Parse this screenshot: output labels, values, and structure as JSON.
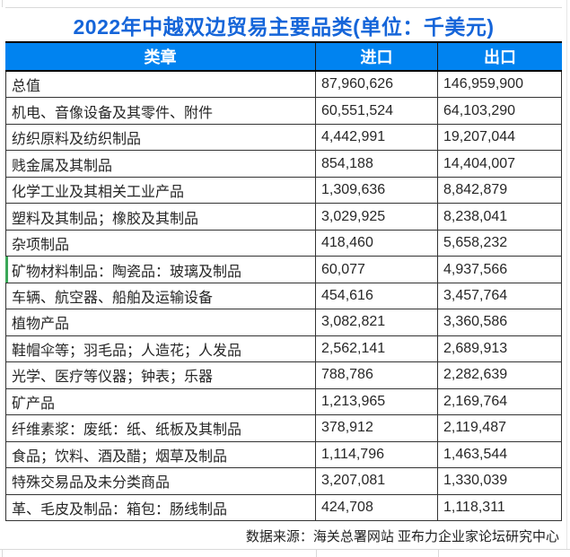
{
  "title": {
    "text": "2022年中越双边贸易主要品类(单位：千美元)"
  },
  "table": {
    "header": {
      "category": "类章",
      "import": "进口",
      "export": "出口"
    },
    "rows": [
      {
        "label": "总值",
        "import": "87,960,626",
        "export": "146,959,900",
        "accent_left": false
      },
      {
        "label": "机电、音像设备及其零件、附件",
        "import": "60,551,524",
        "export": "64,103,290",
        "accent_left": false
      },
      {
        "label": "纺织原料及纺织制品",
        "import": "4,442,991",
        "export": "19,207,044",
        "accent_left": false
      },
      {
        "label": "贱金属及其制品",
        "import": "854,188",
        "export": "14,404,007",
        "accent_left": false
      },
      {
        "label": "化学工业及其相关工业产品",
        "import": "1,309,636",
        "export": "8,842,879",
        "accent_left": false
      },
      {
        "label": "塑料及其制品；橡胶及其制品",
        "import": "3,029,925",
        "export": "8,238,041",
        "accent_left": false
      },
      {
        "label": "杂项制品",
        "import": "418,460",
        "export": "5,658,232",
        "accent_left": false
      },
      {
        "label": "矿物材料制品：陶瓷品：玻璃及制品",
        "import": "60,077",
        "export": "4,937,566",
        "accent_left": true
      },
      {
        "label": "车辆、航空器、船舶及运输设备",
        "import": "454,616",
        "export": "3,457,764",
        "accent_left": false
      },
      {
        "label": "植物产品",
        "import": "3,082,821",
        "export": "3,360,586",
        "accent_left": false
      },
      {
        "label": "鞋帽伞等；羽毛品；人造花；人发品",
        "import": "2,562,141",
        "export": "2,689,913",
        "accent_left": false
      },
      {
        "label": "光学、医疗等仪器；钟表；乐器",
        "import": "788,786",
        "export": "2,282,639",
        "accent_left": false
      },
      {
        "label": "矿产品",
        "import": "1,213,965",
        "export": "2,169,764",
        "accent_left": false
      },
      {
        "label": "纤维素浆：废纸：纸、纸板及其制品",
        "import": "378,912",
        "export": "2,119,487",
        "accent_left": false
      },
      {
        "label": "食品；饮料、酒及醋；烟草及制品",
        "import": "1,114,796",
        "export": "1,463,544",
        "accent_left": false
      },
      {
        "label": "特殊交易品及未分类商品",
        "import": "3,207,081",
        "export": "1,330,039",
        "accent_left": false
      },
      {
        "label": "革、毛皮及制品：箱包：肠线制品",
        "import": "424,708",
        "export": "1,118,311",
        "accent_left": false
      }
    ]
  },
  "footer": {
    "text": "数据来源：海关总署网站 亚布力企业家论坛研究中心"
  },
  "colors": {
    "header_bg": "#0083f0",
    "title_blue": "#1565d9",
    "border_dark": "#333333",
    "grid_light": "#d9d9d9",
    "accent_green": "#3aa757",
    "body_text": "#262626"
  }
}
